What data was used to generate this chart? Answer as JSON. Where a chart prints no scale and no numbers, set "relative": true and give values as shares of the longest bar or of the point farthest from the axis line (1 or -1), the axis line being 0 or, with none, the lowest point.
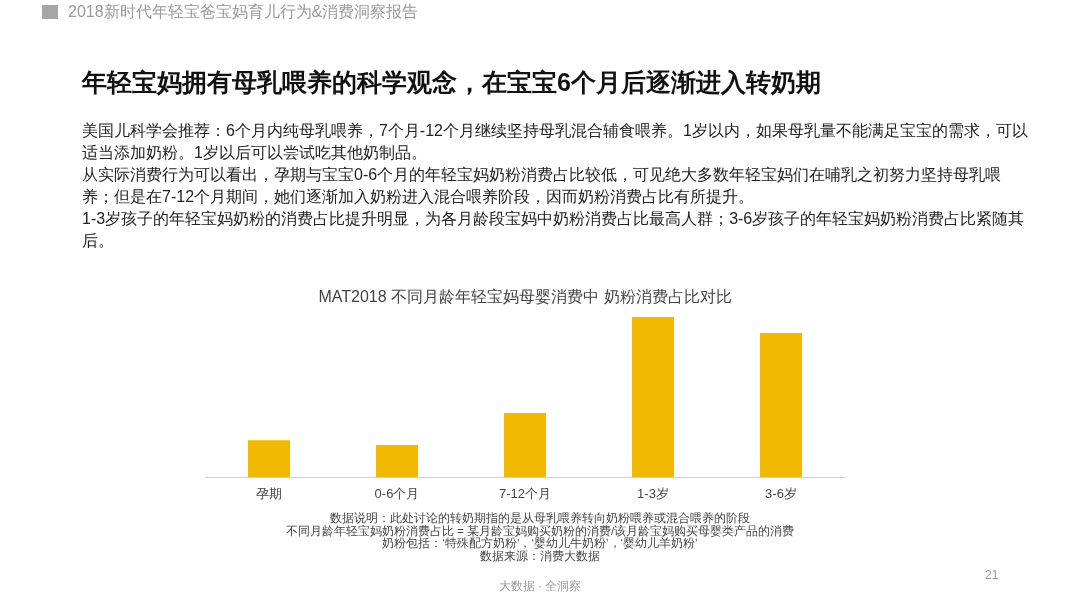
{
  "chart_data": {
    "type": "bar",
    "title": "年轻宝妈拥有母乳喂养的科学观念，在宝宝6个月后逐渐进入转奶期",
    "subtitle": "MAT2018 不同月龄年轻宝妈母婴消费中 奶粉消费占比对比",
    "categories": [
      "孕期",
      "0-6个月",
      "7-12个月",
      "1-3岁",
      "3-6岁"
    ],
    "values": [
      0.23,
      0.2,
      0.4,
      1,
      0.9
    ],
    "color": "#f2b800",
    "relative": true,
    "annotations": [
      "2018新时代年轻宝爸宝妈育儿行为&消费洞察报告",
      "美国儿科学会推荐：6个月内纯母乳喂养，7个月-12个月继续坚持母乳混合辅食喂养。1岁以内，如果母乳量不能满足宝宝的需求，可以适当添加奶粉。1岁以后可以尝试吃其他奶制品。",
      "从实际消费行为可以看出，孕期与宝宝0-6个月的年轻宝妈奶粉消费占比较低，可见绝大多数年轻宝妈们在哺乳之初努力坚持母乳喂养；但是在7-12个月期间，她们逐渐加入奶粉进入混合喂养阶段，因而奶粉消费占比有所提升。",
      "1-3岁孩子的年轻宝妈奶粉的消费占比提升明显，为各月龄段宝妈中奶粉消费占比最高人群；3-6岁孩子的年轻宝妈奶粉消费占比紧随其后。",
      "数据说明：此处讨论的转奶期指的是从母乳喂养转向奶粉喂养或混合喂养的阶段",
      "不同月龄年轻宝妈奶粉消费占比 = 某月龄宝妈购买奶粉的消费/该月龄宝妈购买母婴类产品的消费",
      "奶粉包括：‘特殊配方奶粉’，‘婴幼儿牛奶粉’，‘婴幼儿羊奶粉’",
      "数据来源：消费大数据",
      "大数据 · 全洞察",
      "21"
    ]
  }
}
